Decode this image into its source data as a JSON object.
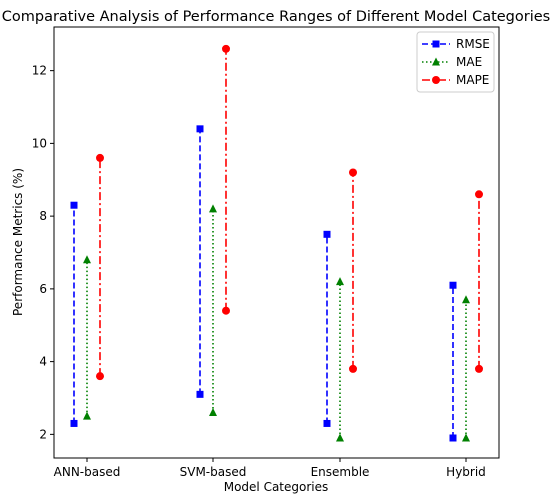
{
  "chart_data": {
    "type": "range-dot",
    "title": "Comparative Analysis of Performance Ranges of Different Model Categories",
    "xlabel": "Model Categories",
    "ylabel": "Performance Metrics (%)",
    "categories": [
      "ANN-based",
      "SVM-based",
      "Ensemble",
      "Hybrid"
    ],
    "ylim": [
      1.35,
      13.2
    ],
    "yticks": [
      2,
      4,
      6,
      8,
      10,
      12
    ],
    "grid": false,
    "legend_position": "top-right",
    "series": [
      {
        "name": "RMSE",
        "color": "#0000ff",
        "marker": "square",
        "linestyle": "dashed",
        "min": [
          2.3,
          3.1,
          2.3,
          1.9
        ],
        "max": [
          8.3,
          10.4,
          7.5,
          6.1
        ]
      },
      {
        "name": "MAE",
        "color": "#008000",
        "marker": "triangle",
        "linestyle": "dotted",
        "min": [
          2.5,
          2.6,
          1.9,
          1.9
        ],
        "max": [
          6.8,
          8.2,
          6.2,
          5.7
        ]
      },
      {
        "name": "MAPE",
        "color": "#ff0000",
        "marker": "circle",
        "linestyle": "dashdot",
        "min": [
          3.6,
          5.4,
          3.8,
          3.8
        ],
        "max": [
          9.6,
          12.6,
          9.2,
          8.6
        ]
      }
    ]
  }
}
